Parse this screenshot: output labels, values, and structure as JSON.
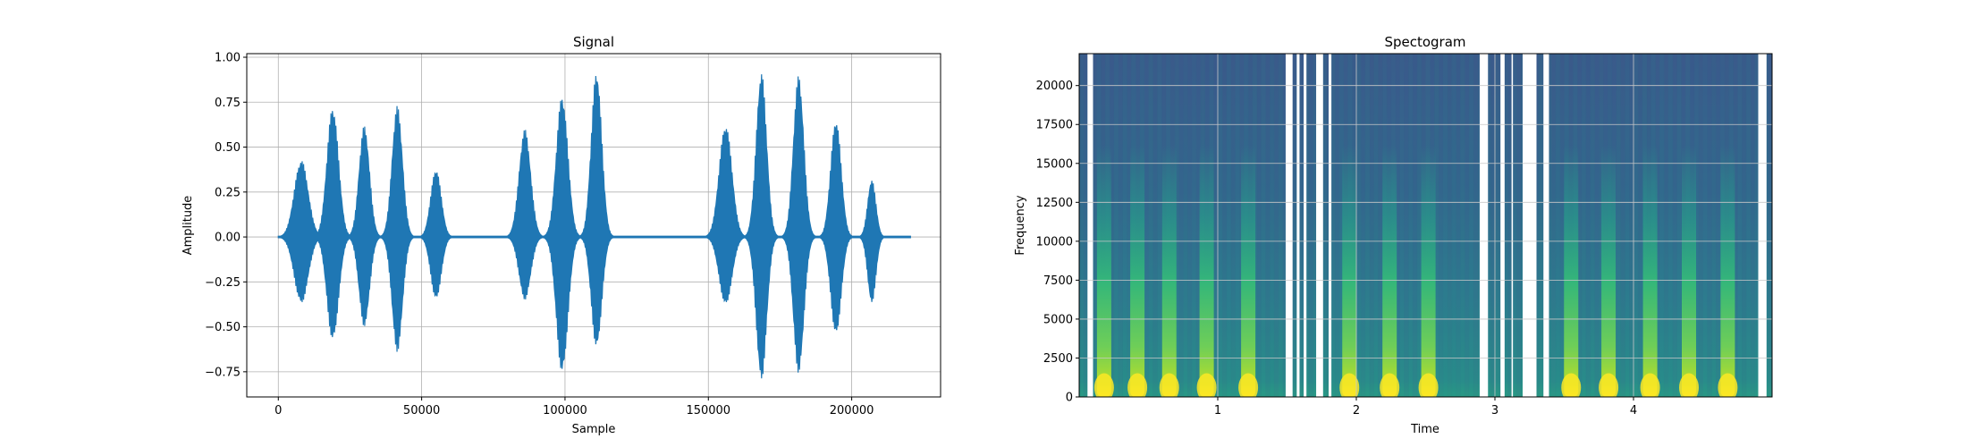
{
  "chart_data": [
    {
      "type": "line",
      "title": "Signal",
      "xlabel": "Sample",
      "ylabel": "Amplitude",
      "xlim": [
        -11000,
        231000
      ],
      "ylim": [
        -0.89,
        1.02
      ],
      "x_ticks": [
        0,
        50000,
        100000,
        150000,
        200000
      ],
      "x_tick_labels": [
        "0",
        "50000",
        "100000",
        "150000",
        "200000"
      ],
      "y_ticks": [
        -0.75,
        -0.5,
        -0.25,
        0.0,
        0.25,
        0.5,
        0.75,
        1.0
      ],
      "y_tick_labels": [
        "−0.75",
        "−0.50",
        "−0.25",
        "0.00",
        "0.25",
        "0.50",
        "0.75",
        "1.00"
      ],
      "grid": true,
      "color": "#1f77b4",
      "signal_range": [
        0,
        220500
      ],
      "bursts": [
        {
          "center": 8000,
          "width": 2400,
          "peak_pos": 0.43,
          "peak_neg": -0.37
        },
        {
          "center": 19000,
          "width": 2000,
          "peak_pos": 0.73,
          "peak_neg": -0.58
        },
        {
          "center": 30000,
          "width": 1800,
          "peak_pos": 0.62,
          "peak_neg": -0.5
        },
        {
          "center": 41500,
          "width": 1800,
          "peak_pos": 0.73,
          "peak_neg": -0.64
        },
        {
          "center": 55000,
          "width": 1800,
          "peak_pos": 0.38,
          "peak_neg": -0.35
        },
        {
          "center": 86000,
          "width": 2000,
          "peak_pos": 0.6,
          "peak_neg": -0.35
        },
        {
          "center": 99000,
          "width": 2000,
          "peak_pos": 0.79,
          "peak_neg": -0.76
        },
        {
          "center": 111000,
          "width": 1800,
          "peak_pos": 0.93,
          "peak_neg": -0.62
        },
        {
          "center": 156000,
          "width": 2200,
          "peak_pos": 0.63,
          "peak_neg": -0.38
        },
        {
          "center": 168500,
          "width": 1800,
          "peak_pos": 0.92,
          "peak_neg": -0.8
        },
        {
          "center": 181500,
          "width": 1800,
          "peak_pos": 0.9,
          "peak_neg": -0.76
        },
        {
          "center": 194500,
          "width": 1800,
          "peak_pos": 0.66,
          "peak_neg": -0.55
        },
        {
          "center": 207000,
          "width": 1400,
          "peak_pos": 0.32,
          "peak_neg": -0.37
        }
      ]
    },
    {
      "type": "heatmap",
      "title": "Spectogram",
      "xlabel": "Time",
      "ylabel": "Frequency",
      "xlim": [
        0,
        5.0
      ],
      "ylim": [
        0,
        22050
      ],
      "x_ticks": [
        1,
        2,
        3,
        4
      ],
      "x_tick_labels": [
        "1",
        "2",
        "3",
        "4"
      ],
      "y_ticks": [
        0,
        2500,
        5000,
        7500,
        10000,
        12500,
        15000,
        17500,
        20000
      ],
      "y_tick_labels": [
        "0",
        "2500",
        "5000",
        "7500",
        "10000",
        "12500",
        "15000",
        "17500",
        "20000"
      ],
      "grid": true,
      "colormap": "viridis",
      "speech_bursts_time": [
        0.18,
        0.42,
        0.65,
        0.92,
        1.22,
        1.95,
        2.24,
        2.52,
        3.55,
        3.82,
        4.12,
        4.4,
        4.68
      ],
      "white_gaps_time": [
        [
          0.06,
          0.1
        ],
        [
          1.49,
          1.54
        ],
        [
          1.57,
          1.59
        ],
        [
          1.62,
          1.64
        ],
        [
          1.71,
          1.76
        ],
        [
          1.8,
          1.82
        ],
        [
          2.89,
          2.95
        ],
        [
          3.04,
          3.07
        ],
        [
          3.12,
          3.13
        ],
        [
          3.2,
          3.3
        ],
        [
          3.35,
          3.39
        ],
        [
          4.9,
          4.96
        ]
      ]
    }
  ]
}
